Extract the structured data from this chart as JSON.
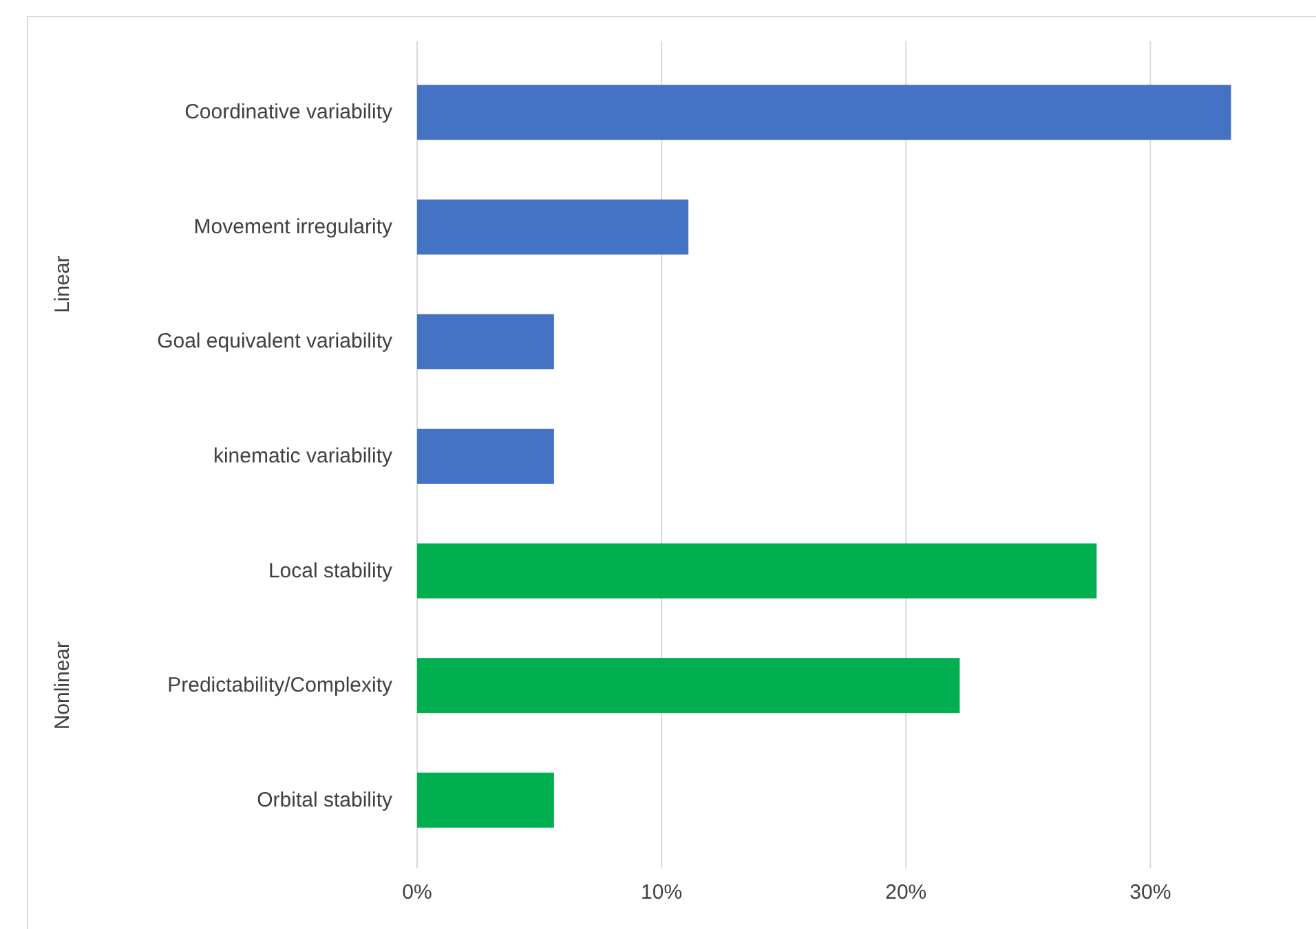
{
  "chart_data": {
    "type": "bar",
    "orientation": "horizontal",
    "categories": [
      "Coordinative variability",
      "Movement irregularity",
      "Goal equivalent variability",
      "kinematic variability",
      "Local stability",
      "Predictability/Complexity",
      "Orbital stability"
    ],
    "values": [
      33.3,
      11.1,
      5.6,
      5.6,
      27.8,
      22.2,
      5.6
    ],
    "colors": [
      "#4472c4",
      "#4472c4",
      "#4472c4",
      "#4472c4",
      "#00b050",
      "#00b050",
      "#00b050"
    ],
    "xlim": [
      0,
      37
    ],
    "xticks": [
      {
        "value": 0,
        "label": "0%"
      },
      {
        "value": 10,
        "label": "10%"
      },
      {
        "value": 20,
        "label": "20%"
      },
      {
        "value": 30,
        "label": "30%"
      }
    ],
    "grid": "x",
    "annotations": [
      "Linear",
      "Nonlinear"
    ]
  }
}
